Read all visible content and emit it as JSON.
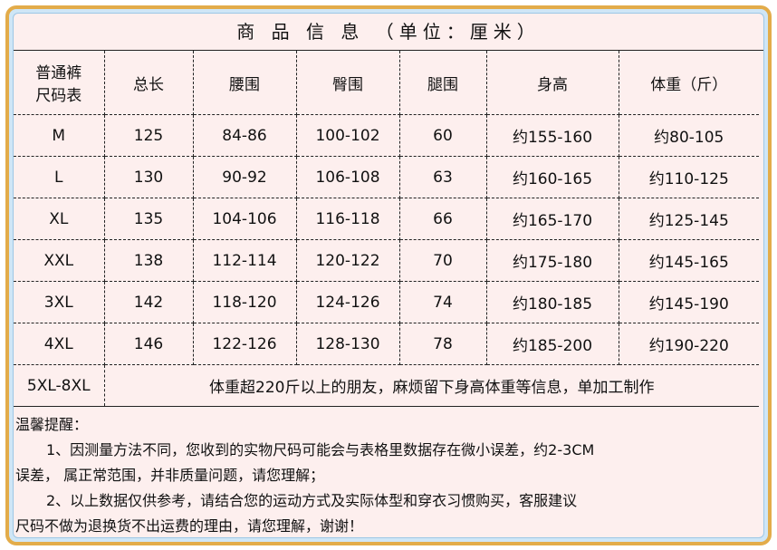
{
  "title": "商 品 信 息 （单位：厘米）",
  "headers": [
    "普通裤\n尺码表",
    "总长",
    "腰围",
    "臀围",
    "腿围",
    "身高",
    "体重（斤）"
  ],
  "rows": [
    [
      "M",
      "125",
      "84-86",
      "100-102",
      "60",
      "约155-160",
      "约80-105"
    ],
    [
      "L",
      "130",
      "90-92",
      "106-108",
      "63",
      "约160-165",
      "约110-125"
    ],
    [
      "XL",
      "135",
      "104-106",
      "116-118",
      "66",
      "约165-170",
      "约125-145"
    ],
    [
      "XXL",
      "138",
      "112-114",
      "120-122",
      "70",
      "约175-180",
      "约145-165"
    ],
    [
      "3XL",
      "142",
      "118-120",
      "124-126",
      "74",
      "约180-185",
      "约145-190"
    ],
    [
      "4XL",
      "146",
      "122-126",
      "128-130",
      "78",
      "约185-200",
      "约190-220"
    ]
  ],
  "extra": {
    "size": "5XL-8XL",
    "text": "体重超220斤以上的朋友，麻烦留下身高体重等信息，单加工制作"
  },
  "notes": {
    "heading": "温馨提醒：",
    "n1a": "1、因测量方法不同，您收到的实物尺码可能会与表格里数据存在微小误差，约2-3CM",
    "n1b": "误差， 属正常范围，并非质量问题，请您理解；",
    "n2a": "2、以上数据仅供参考，请结合您的运动方式及实际体型和穿衣习惯购买，客服建议",
    "n2b": "尺码不做为退换货不出运费的理由，请您理解，谢谢！"
  },
  "colors": {
    "frame": "#e3ac4a",
    "inner_border": "#cfe6f6",
    "background": "#fdefee"
  }
}
